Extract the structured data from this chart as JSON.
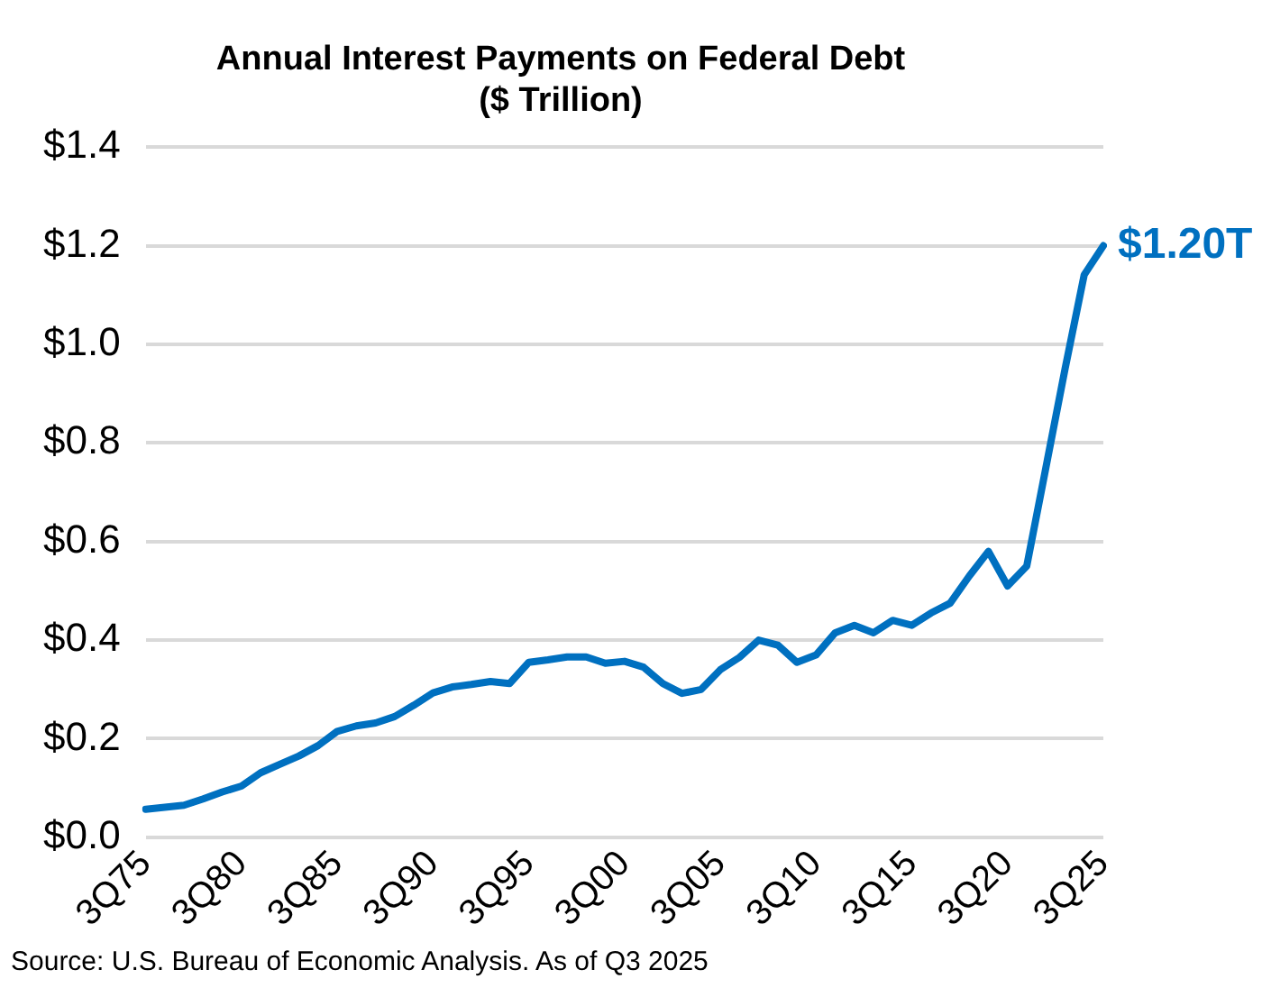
{
  "chart_data": {
    "type": "line",
    "title": "Annual Interest Payments on Federal Debt\n($ Trillion)",
    "categories": [
      "3Q75",
      null,
      null,
      null,
      null,
      "3Q80",
      null,
      null,
      null,
      null,
      "3Q85",
      null,
      null,
      null,
      null,
      "3Q90",
      null,
      null,
      null,
      null,
      "3Q95",
      null,
      null,
      null,
      null,
      "3Q00",
      null,
      null,
      null,
      null,
      "3Q05",
      null,
      null,
      null,
      null,
      "3Q10",
      null,
      null,
      null,
      null,
      "3Q15",
      null,
      null,
      null,
      null,
      "3Q20",
      null,
      null,
      null,
      null,
      "3Q25"
    ],
    "series": [
      {
        "color": "#0070c0",
        "values": [
          0.057,
          0.061,
          0.065,
          0.078,
          0.092,
          0.104,
          0.131,
          0.148,
          0.165,
          0.186,
          0.215,
          0.226,
          0.232,
          0.245,
          0.268,
          0.293,
          0.305,
          0.31,
          0.316,
          0.312,
          0.355,
          0.36,
          0.366,
          0.366,
          0.353,
          0.357,
          0.345,
          0.312,
          0.292,
          0.3,
          0.34,
          0.365,
          0.4,
          0.39,
          0.355,
          0.37,
          0.415,
          0.43,
          0.415,
          0.44,
          0.43,
          0.455,
          0.475,
          0.53,
          0.58,
          0.51,
          0.55,
          0.75,
          0.95,
          1.141,
          1.2
        ]
      }
    ],
    "ylim": [
      0,
      1.4
    ],
    "yticks": [
      {
        "value": 0,
        "label": "$0.0"
      },
      {
        "value": 0.2,
        "label": "$0.2"
      },
      {
        "value": 0.4,
        "label": "$0.4"
      },
      {
        "value": 0.6,
        "label": "$0.6"
      },
      {
        "value": 0.8,
        "label": "$0.8"
      },
      {
        "value": 1.0,
        "label": "$1.0"
      },
      {
        "value": 1.2,
        "label": "$1.2"
      },
      {
        "value": 1.4,
        "label": "$1.4"
      }
    ],
    "grid": "y",
    "legend": false,
    "marker": "none",
    "line_style": "solid",
    "annotations": [
      {
        "text": "$1.20T",
        "x": "3Q25",
        "y": 1.2
      },
      "Source: U.S. Bureau of Economic Analysis. As of Q3 2025"
    ]
  }
}
